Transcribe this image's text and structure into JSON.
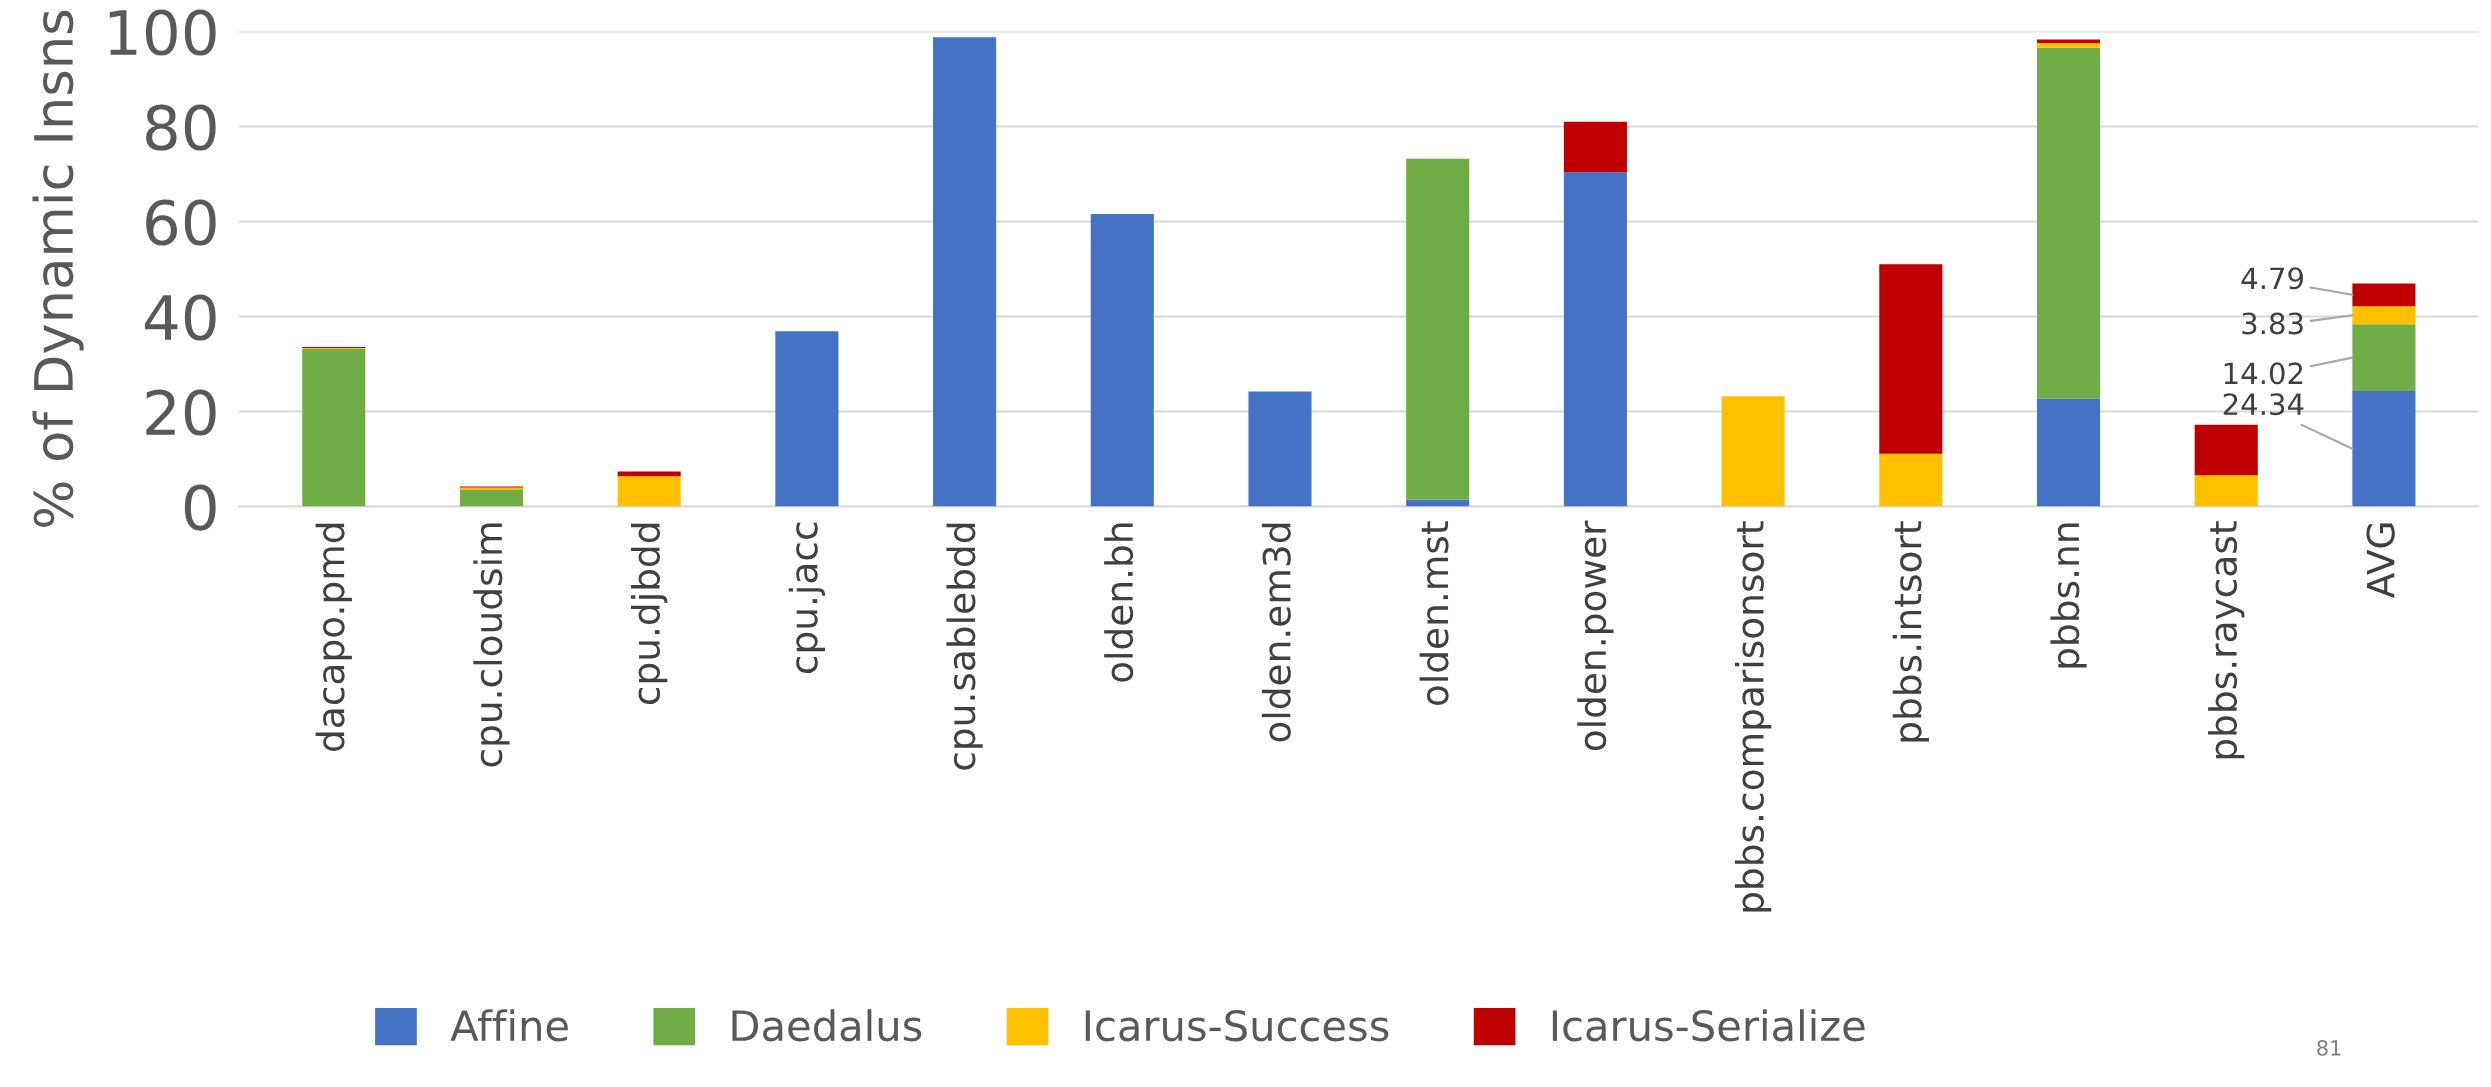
{
  "chart_data": {
    "type": "bar",
    "stacked": true,
    "ylabel": "% of Dynamic Insns",
    "categories": [
      "dacapo.pmd",
      "cpu.cloudsim",
      "cpu.djbdd",
      "cpu.jacc",
      "cpu.sablebdd",
      "olden.bh",
      "olden.em3d",
      "olden.mst",
      "olden.power",
      "pbbs.comparisonsort",
      "pbbs.intsort",
      "pbbs.nn",
      "pbbs.raycast",
      "AVG"
    ],
    "series": [
      {
        "name": "Affine",
        "color": "#4472c4",
        "values": [
          0,
          0,
          0,
          36.9,
          98.8,
          61.6,
          24.2,
          1.5,
          70.4,
          0,
          0,
          22.7,
          0,
          24.34
        ],
        "value_labels": [
          null,
          null,
          null,
          null,
          null,
          null,
          null,
          null,
          null,
          null,
          null,
          null,
          null,
          "24.34"
        ]
      },
      {
        "name": "Daedalus",
        "color": "#70ad47",
        "values": [
          33.2,
          3.5,
          0,
          0,
          0,
          0,
          0,
          71.7,
          0,
          0,
          0,
          73.9,
          0,
          14.02
        ],
        "value_labels": [
          null,
          null,
          null,
          null,
          null,
          null,
          null,
          null,
          null,
          null,
          null,
          null,
          null,
          "14.02"
        ]
      },
      {
        "name": "Icarus-Success",
        "color": "#ffc000",
        "values": [
          0.2,
          0.5,
          6.4,
          0,
          0,
          0,
          0,
          0,
          0,
          23.2,
          11.1,
          1.0,
          6.6,
          3.83
        ],
        "value_labels": [
          null,
          null,
          null,
          null,
          null,
          null,
          null,
          null,
          null,
          null,
          null,
          null,
          null,
          "3.83"
        ]
      },
      {
        "name": "Icarus-Serialize",
        "color": "#c00000",
        "values": [
          0.2,
          0.2,
          1.0,
          0,
          0,
          0,
          0,
          0,
          10.6,
          0,
          39.9,
          0.7,
          10.6,
          4.79
        ],
        "value_labels": [
          null,
          null,
          null,
          null,
          null,
          null,
          null,
          null,
          null,
          null,
          null,
          null,
          null,
          "4.79"
        ]
      }
    ],
    "ylim": [
      0,
      100
    ],
    "yticks": [
      0,
      20,
      40,
      60,
      80,
      100
    ],
    "grid": "y",
    "legend": "bottom",
    "annotations": [
      "81"
    ]
  }
}
